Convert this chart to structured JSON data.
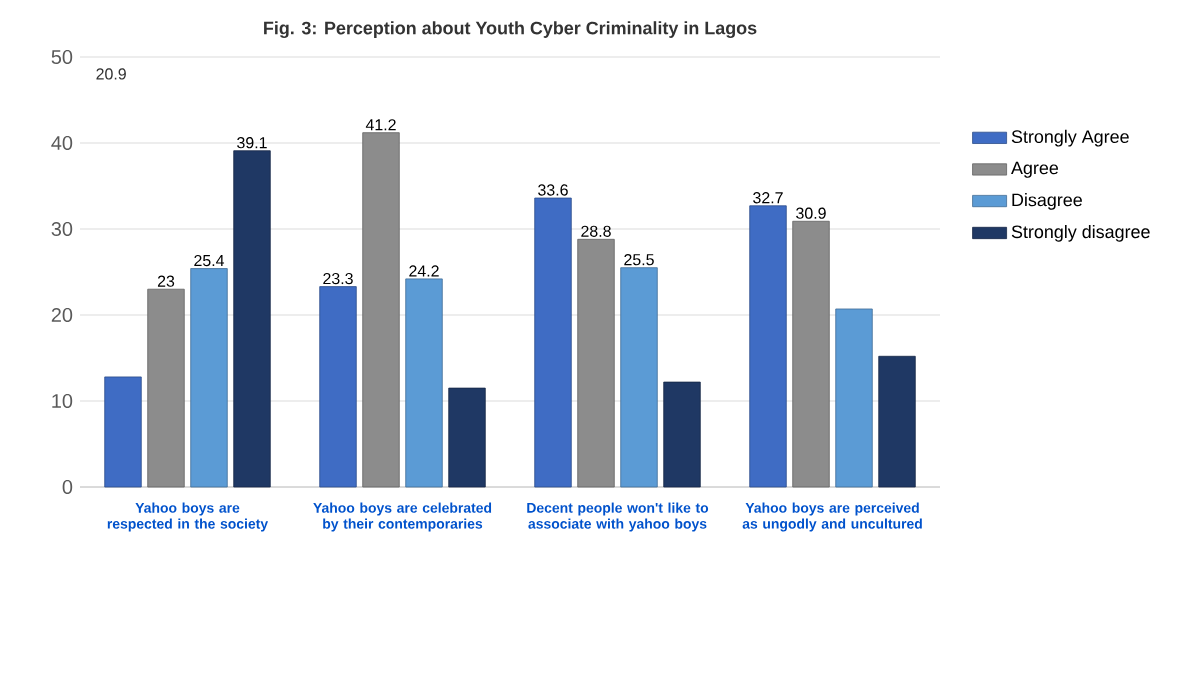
{
  "chart_data": {
    "type": "bar",
    "title": "Fig. 3: Perception about Youth Cyber Criminality in Lagos",
    "categories": [
      "Yahoo boys are respected in the society",
      "Yahoo boys are celebrated by their contemporaries",
      "Decent people won't like to associate with yahoo boys",
      "Yahoo boys are perceived as ungodly and uncultured"
    ],
    "series": [
      {
        "name": "Strongly Agree",
        "color": "#3f6cc4",
        "values": [
          12.8,
          23.3,
          33.6,
          32.7
        ],
        "value_labels": [
          null,
          "23.3",
          "33.6",
          "32.7"
        ]
      },
      {
        "name": "Agree",
        "color": "#8c8c8c",
        "values": [
          23,
          41.2,
          28.8,
          30.9
        ],
        "value_labels": [
          "23",
          "41.2",
          "28.8",
          "30.9"
        ]
      },
      {
        "name": "Disagree",
        "color": "#5b9bd5",
        "values": [
          25.4,
          24.2,
          25.5,
          20.7
        ],
        "value_labels": [
          "25.4",
          "24.2",
          "25.5",
          null
        ]
      },
      {
        "name": "Strongly disagree",
        "color": "#1f3864",
        "values": [
          39.1,
          11.5,
          12.2,
          15.2
        ],
        "value_labels": [
          "39.1",
          null,
          null,
          null
        ]
      }
    ],
    "annotations": [
      "20.9"
    ],
    "ylim": [
      0,
      50
    ],
    "yticks": [
      0,
      10,
      20,
      30,
      40,
      50
    ],
    "grid": "y",
    "legend": "right"
  }
}
